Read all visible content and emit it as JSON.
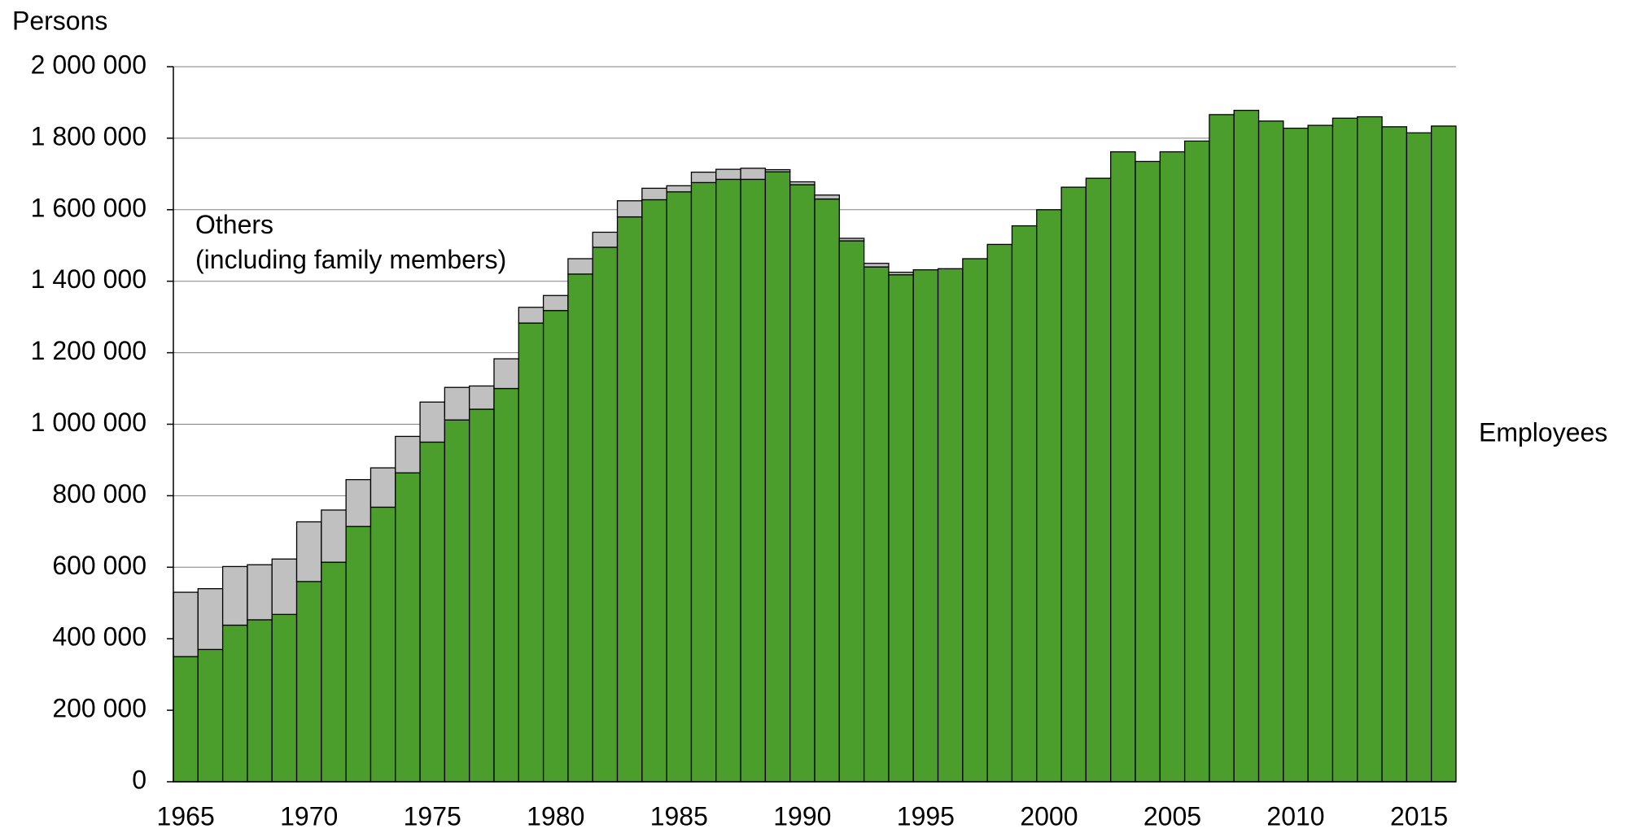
{
  "chart_data": {
    "type": "stacked-bar",
    "y_axis_label": "Persons",
    "categories": [
      "1965",
      null,
      null,
      null,
      null,
      "1970",
      null,
      null,
      null,
      null,
      "1975",
      null,
      null,
      null,
      null,
      "1980",
      null,
      null,
      null,
      null,
      "1985",
      null,
      null,
      null,
      null,
      "1990",
      null,
      null,
      null,
      null,
      "1995",
      null,
      null,
      null,
      null,
      "2000",
      null,
      null,
      null,
      null,
      "2005",
      null,
      null,
      null,
      null,
      "2010",
      null,
      null,
      null,
      null,
      "2015",
      null
    ],
    "series": [
      {
        "name": "Employees",
        "color": "#4c9e2c",
        "values": [
          350000,
          370000,
          438000,
          453000,
          468000,
          560000,
          614000,
          714000,
          768000,
          864000,
          950000,
          1012000,
          1042000,
          1100000,
          1283000,
          1318000,
          1420000,
          1495000,
          1580000,
          1628000,
          1650000,
          1676000,
          1685000,
          1685000,
          1706000,
          1670000,
          1630000,
          1513000,
          1440000,
          1418000,
          1432000,
          1435000,
          1463000,
          1503000,
          1555000,
          1600000,
          1663000,
          1688000,
          1762000,
          1735000,
          1762000,
          1792000,
          1866000,
          1878000,
          1848000,
          1828000,
          1836000,
          1856000,
          1860000,
          1832000,
          1815000,
          1834000
        ]
      },
      {
        "name": "Others\n(including family members)",
        "color": "#c0c0c0",
        "values": [
          180000,
          170000,
          164000,
          154000,
          155000,
          167000,
          146000,
          131000,
          110000,
          102000,
          112000,
          91000,
          65000,
          83000,
          44000,
          42000,
          43000,
          42000,
          45000,
          32000,
          17000,
          29000,
          28000,
          31000,
          6000,
          8000,
          11000,
          7000,
          10000,
          7000,
          0,
          0,
          0,
          0,
          0,
          0,
          0,
          0,
          0,
          0,
          0,
          0,
          0,
          0,
          0,
          0,
          0,
          0,
          0,
          0,
          0,
          0
        ]
      }
    ],
    "ylim": [
      0,
      2000000
    ],
    "yticks": [
      0,
      {
        "value": 200000,
        "label": "200 000"
      },
      {
        "value": 400000,
        "label": "400 000"
      },
      {
        "value": 600000,
        "label": "600 000"
      },
      {
        "value": 800000,
        "label": "800 000"
      },
      {
        "value": 1000000,
        "label": "1 000 000"
      },
      {
        "value": 1200000,
        "label": "1 200 000"
      },
      {
        "value": 1400000,
        "label": "1 400 000"
      },
      {
        "value": 1600000,
        "label": "1 600 000"
      },
      {
        "value": 1800000,
        "label": "1 800 000"
      },
      {
        "value": 2000000,
        "label": "2 000 000"
      }
    ],
    "grid": true
  }
}
